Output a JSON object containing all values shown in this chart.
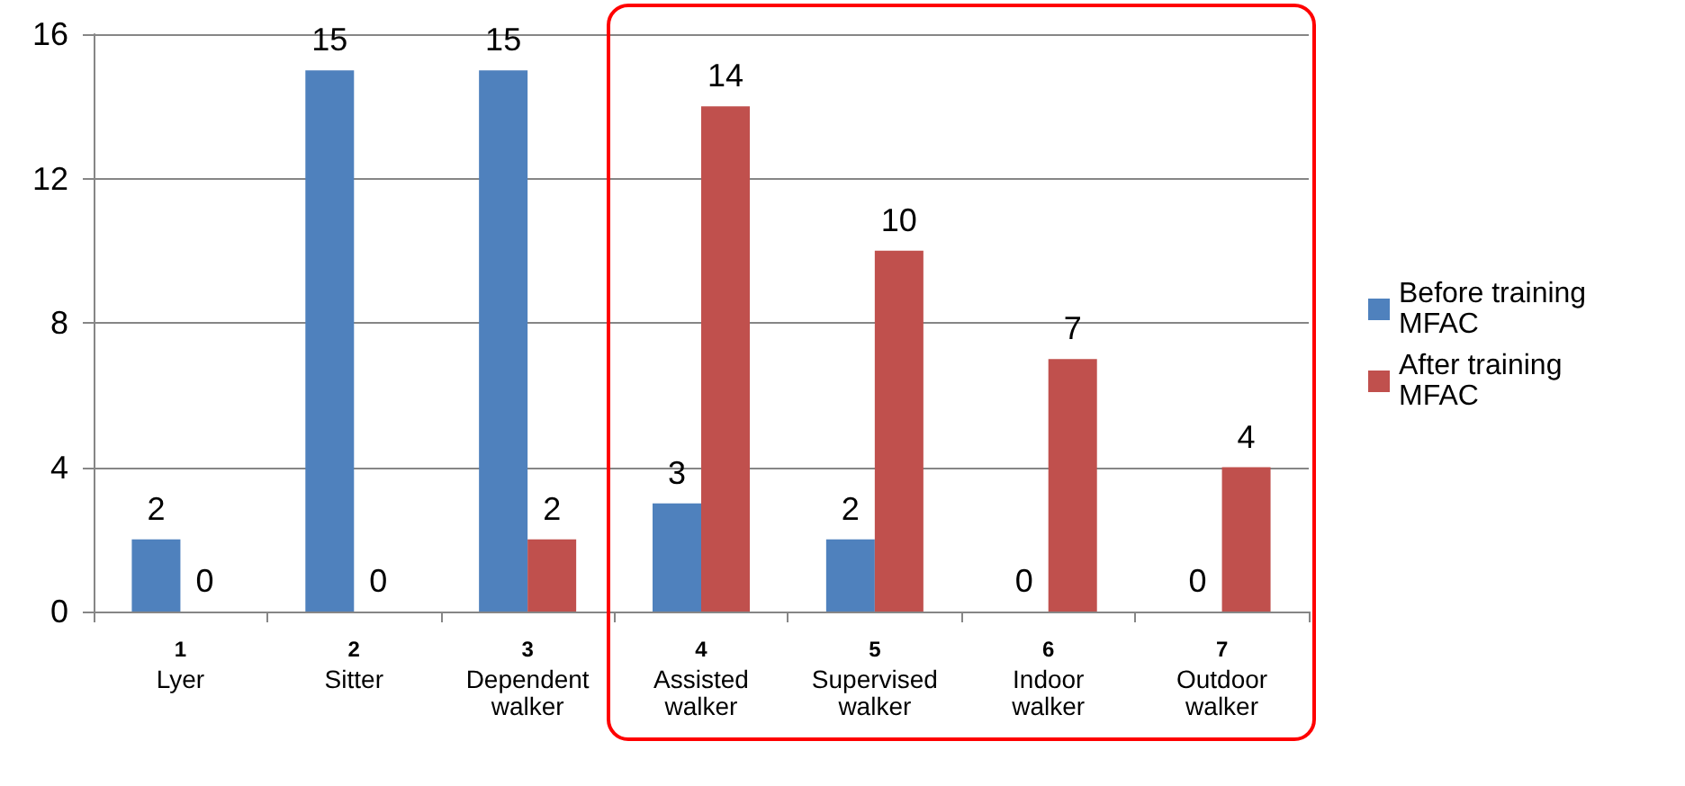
{
  "chart_data": {
    "type": "bar",
    "categories": [
      "1\nLyer",
      "2\nSitter",
      "3\nDependent\nwalker",
      "4\nAssisted\nwalker",
      "5\nSupervised\nwalker",
      "6\nIndoor\nwalker",
      "7\nOutdoor\nwalker"
    ],
    "series": [
      {
        "name": "Before training MFAC",
        "color": "#4f81bd",
        "values": [
          2,
          15,
          15,
          3,
          2,
          0,
          0
        ]
      },
      {
        "name": "After training MFAC",
        "color": "#c0504d",
        "values": [
          0,
          0,
          2,
          14,
          10,
          7,
          4
        ]
      }
    ],
    "ylim": [
      0,
      16
    ],
    "yticks": [
      0,
      4,
      8,
      12,
      16
    ],
    "grid": "y",
    "legend": "right",
    "data_labels": true
  }
}
